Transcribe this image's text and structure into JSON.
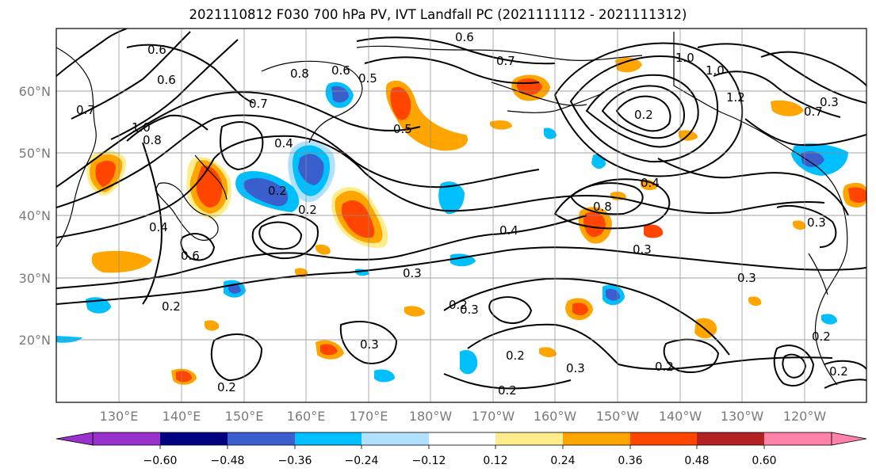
{
  "title": "2021110812 F030 700 hPa PV, IVT Landfall PC (2021111112 - 2021111312)",
  "lat_labels": [
    "60°N",
    "50°N",
    "40°N",
    "30°N",
    "20°N"
  ],
  "lon_labels": [
    "130°E",
    "140°E",
    "150°E",
    "160°E",
    "170°E",
    "180°W",
    "170°W",
    "160°W",
    "150°W",
    "140°W",
    "130°W",
    "120°W"
  ],
  "contour_labels": [
    "0.6",
    "0.6",
    "0.7",
    "0.7",
    "0.8",
    "0.6",
    "0.5",
    "0.6",
    "0.7",
    "1.0",
    "0.8",
    "0.5",
    "0.4",
    "0.2",
    "0.2",
    "0.4",
    "0.6",
    "0.2",
    "0.3",
    "0.2",
    "0.4",
    "0.3",
    "0.8",
    "0.4",
    "0.2",
    "0.3",
    "0.2",
    "0.3",
    "0.2",
    "0.2",
    "1.0",
    "1.0",
    "1.2",
    "0.3",
    "0.7",
    "0.3",
    "0.3",
    "0.2",
    "0.2",
    "0.3",
    "0.2"
  ],
  "colorbar": {
    "colors": [
      "#9932CC",
      "#000080",
      "#3A5FCD",
      "#00BFFF",
      "#B0E2FF",
      "#FFFFFF",
      "#FFEC8B",
      "#FFA500",
      "#FF4500",
      "#B22222",
      "#FF82AB"
    ],
    "tick_labels": [
      "−0.60",
      "−0.48",
      "−0.36",
      "−0.24",
      "−0.12",
      "0.12",
      "0.24",
      "0.36",
      "0.48",
      "0.60"
    ]
  },
  "colors": {
    "contour": "#000000",
    "grid": "#8c8c8c",
    "coast": "#000000",
    "positive_high": "#FF4500",
    "positive_mid": "#FFA500",
    "positive_low": "#FFEC8B",
    "negative_low": "#00BFFF",
    "negative_mid": "#3A5FCD"
  }
}
